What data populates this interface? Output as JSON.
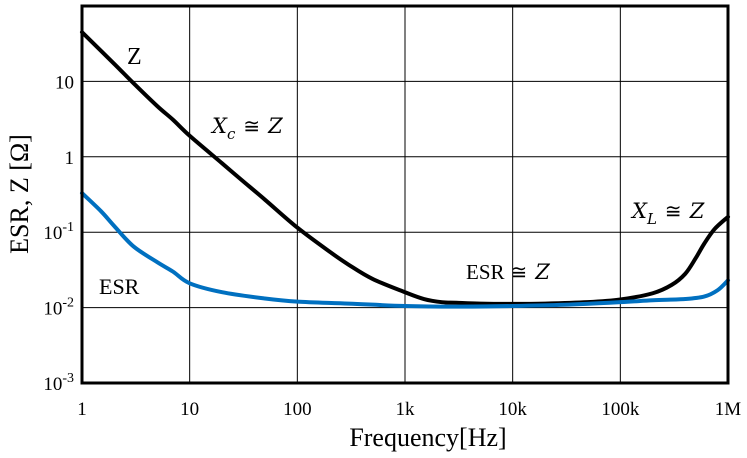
{
  "chart_data": {
    "type": "line",
    "xscale": "log",
    "yscale": "log",
    "xlabel": "Frequency[Hz]",
    "ylabel": "ESR, Z [Ω]",
    "xlim": [
      1,
      1000000
    ],
    "ylim": [
      0.001,
      100
    ],
    "grid": true,
    "x_ticks": [
      {
        "value": 1,
        "label": "1"
      },
      {
        "value": 10,
        "label": "10"
      },
      {
        "value": 100,
        "label": "100"
      },
      {
        "value": 1000,
        "label": "1k"
      },
      {
        "value": 10000,
        "label": "10k"
      },
      {
        "value": 100000,
        "label": "100k"
      },
      {
        "value": 1000000,
        "label": "1M"
      }
    ],
    "y_ticks": [
      {
        "value": 0.001,
        "base": "10",
        "exp": "-3"
      },
      {
        "value": 0.01,
        "base": "10",
        "exp": "-2"
      },
      {
        "value": 0.1,
        "base": "10",
        "exp": "-1"
      },
      {
        "value": 1,
        "base": "1",
        "exp": ""
      },
      {
        "value": 10,
        "base": "10",
        "exp": ""
      }
    ],
    "series": [
      {
        "name": "Z",
        "color": "#000000",
        "points": [
          [
            1,
            45
          ],
          [
            2,
            17
          ],
          [
            3,
            9.5
          ],
          [
            5,
            4.7
          ],
          [
            7,
            3.1
          ],
          [
            10,
            1.9
          ],
          [
            20,
            0.82
          ],
          [
            30,
            0.5
          ],
          [
            50,
            0.27
          ],
          [
            100,
            0.115
          ],
          [
            200,
            0.055
          ],
          [
            300,
            0.037
          ],
          [
            500,
            0.024
          ],
          [
            1000,
            0.016
          ],
          [
            1500,
            0.013
          ],
          [
            2200,
            0.0118
          ],
          [
            3000,
            0.0116
          ],
          [
            5000,
            0.0113
          ],
          [
            10000,
            0.0112
          ],
          [
            20000,
            0.0113
          ],
          [
            50000,
            0.0118
          ],
          [
            100000,
            0.0128
          ],
          [
            200000,
            0.0155
          ],
          [
            300000,
            0.02
          ],
          [
            400000,
            0.028
          ],
          [
            500000,
            0.045
          ],
          [
            600000,
            0.07
          ],
          [
            750000,
            0.11
          ],
          [
            1000000,
            0.16
          ]
        ]
      },
      {
        "name": "ESR",
        "color": "#0070c0",
        "points": [
          [
            1,
            0.33
          ],
          [
            1.5,
            0.19
          ],
          [
            2,
            0.12
          ],
          [
            3,
            0.065
          ],
          [
            5,
            0.04
          ],
          [
            7,
            0.03
          ],
          [
            10,
            0.021
          ],
          [
            20,
            0.016
          ],
          [
            50,
            0.0132
          ],
          [
            100,
            0.012
          ],
          [
            300,
            0.0113
          ],
          [
            1000,
            0.0105
          ],
          [
            3000,
            0.0103
          ],
          [
            10000,
            0.0105
          ],
          [
            30000,
            0.0109
          ],
          [
            100000,
            0.0118
          ],
          [
            200000,
            0.0125
          ],
          [
            400000,
            0.013
          ],
          [
            600000,
            0.014
          ],
          [
            800000,
            0.017
          ],
          [
            1000000,
            0.023
          ]
        ]
      }
    ],
    "annotations": [
      {
        "id": "z",
        "text": "Z"
      },
      {
        "id": "xc",
        "main": "X",
        "sub": "c",
        "op": "≅",
        "rhs": "Z"
      },
      {
        "id": "xl",
        "main": "X",
        "sub": "L",
        "op": "≅",
        "rhs": "Z"
      },
      {
        "id": "esrz",
        "lhs": "ESR",
        "op": "≅",
        "rhs": "Z"
      },
      {
        "id": "esr",
        "text": "ESR",
        "color": "#0070c0"
      }
    ]
  }
}
